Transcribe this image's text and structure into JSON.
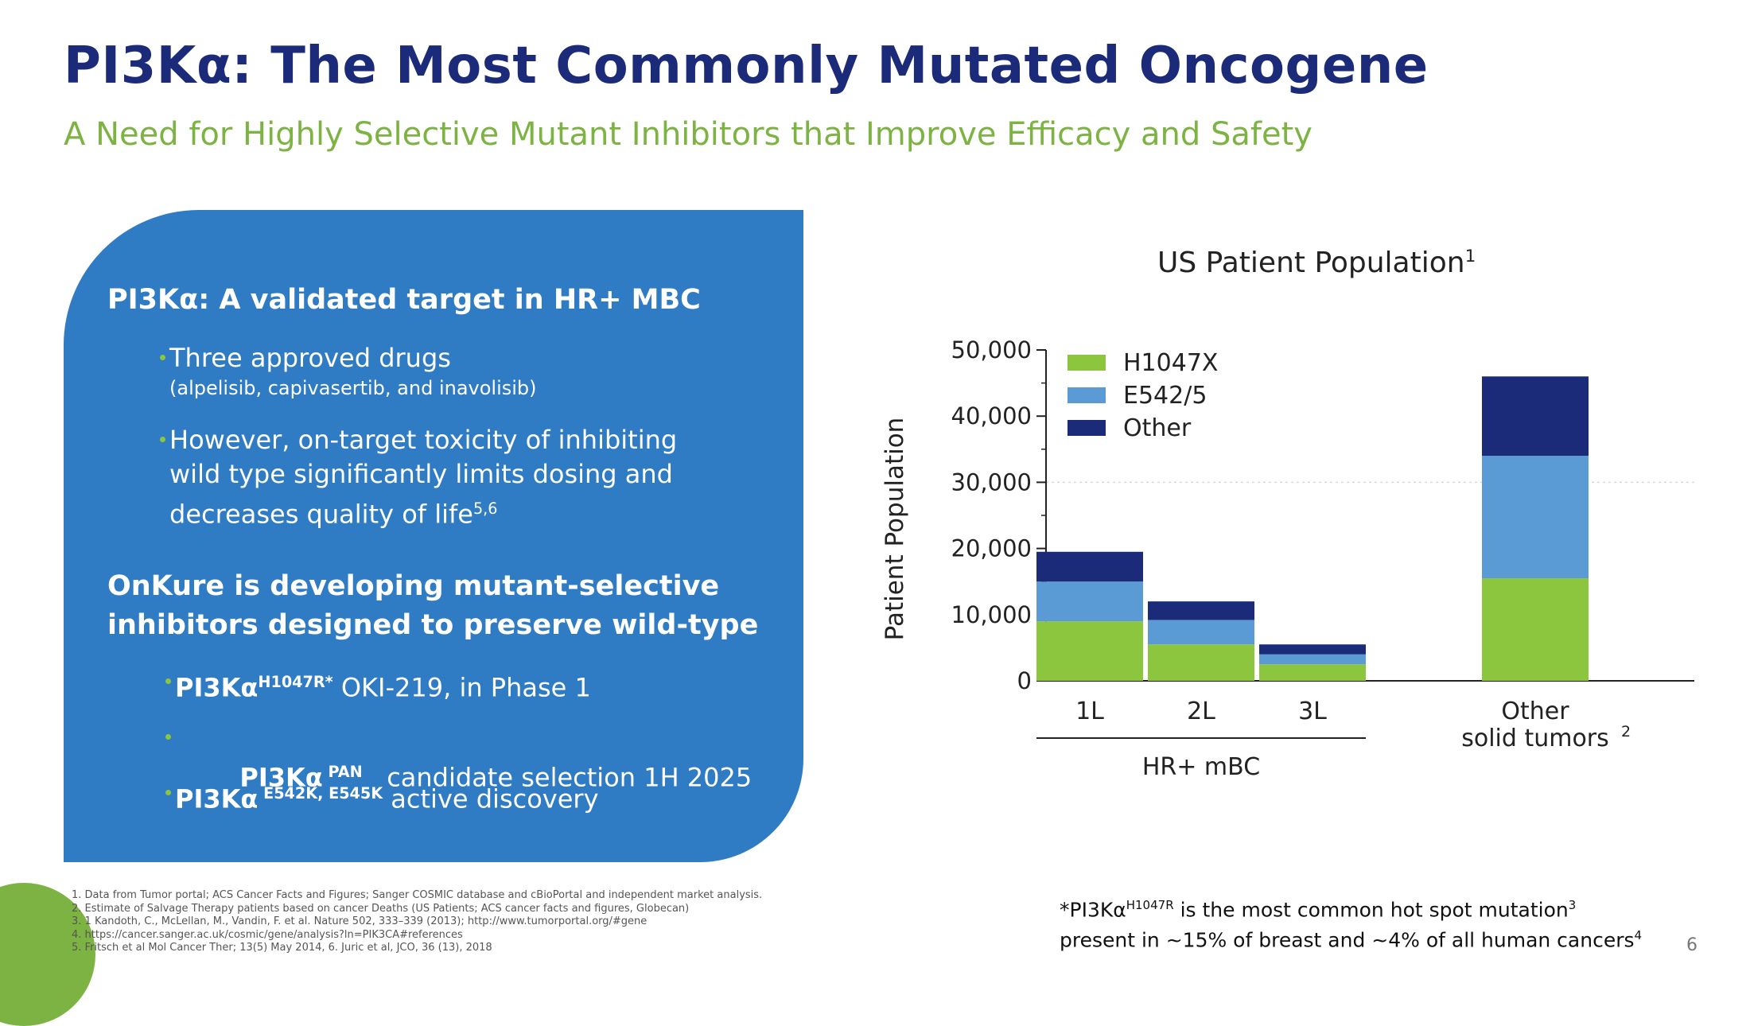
{
  "header": {
    "title": "PI3Kα: The Most Commonly Mutated Oncogene",
    "subtitle": "A Need for Highly Selective Mutant Inhibitors that Improve Efficacy and Safety"
  },
  "panel": {
    "heading1": "PI3Kα: A validated target in HR+ MBC",
    "bullet1_line1": "Three approved drugs",
    "bullet1_line2": "(alpelisib, capivasertib, and inavolisib)",
    "bullet2_line1": "However, on-target toxicity of inhibiting",
    "bullet2_line2": "wild type significantly limits dosing and",
    "bullet2_line3": "decreases quality of life",
    "bullet2_sup": "5,6",
    "heading2_line1": "OnKure is developing mutant-selective",
    "heading2_line2": "inhibitors designed to preserve wild-type",
    "items": [
      {
        "name": "PI3Kα",
        "sup": "H1047R*",
        "text": " OKI-219, in Phase 1"
      },
      {
        "name": "PI3Kα",
        "sup": " PAN",
        "text": "   candidate selection 1H 2025"
      },
      {
        "name": "PI3Kα",
        "sup": " E542K, E545K",
        "text": " active discovery"
      }
    ],
    "colors": {
      "panel": "#2f7bc4",
      "bullet": "#8cc63f"
    }
  },
  "chart_data": {
    "type": "bar",
    "stacked": true,
    "title": "US Patient Population",
    "title_sup": "1",
    "ylabel": "Patient Population",
    "ylim": [
      0,
      50000
    ],
    "yticks": [
      "0",
      "10,000",
      "20,000",
      "30,000",
      "40,000",
      "50,000"
    ],
    "categories": [
      "1L",
      "2L",
      "3L",
      "Other solid tumors"
    ],
    "category_labels": [
      {
        "line1": "1L",
        "line2": ""
      },
      {
        "line1": "2L",
        "line2": ""
      },
      {
        "line1": "3L",
        "line2": ""
      },
      {
        "line1": "Other",
        "line2": "solid tumors",
        "sup": "2"
      }
    ],
    "group_label": "HR+ mBC",
    "legend_position": "top-left",
    "series": [
      {
        "name": "H1047X",
        "color": "#8cc63f",
        "values": [
          9000,
          5500,
          2500,
          15500
        ]
      },
      {
        "name": "E542/5",
        "color": "#5b9bd5",
        "values": [
          6000,
          3700,
          1500,
          18500
        ]
      },
      {
        "name": "Other",
        "color": "#1b2b7a",
        "values": [
          4500,
          2800,
          1500,
          12000
        ]
      }
    ]
  },
  "footnotes": [
    "1. Data from Tumor portal; ACS Cancer Facts and Figures; Sanger COSMIC database and cBioPortal and independent market analysis.",
    "2. Estimate of Salvage Therapy patients based on cancer Deaths (US Patients; ACS cancer facts and figures, Globecan)",
    "3. 1 Kandoth, C., McLellan, M., Vandin, F. et al. Nature 502, 333–339 (2013); http://www.tumorportal.org/#gene",
    "4. https://cancer.sanger.ac.uk/cosmic/gene/analysis?ln=PIK3CA#references",
    "5. Fritsch et al Mol Cancer Ther; 13(5) May 2014,    6. Juric et al, JCO, 36 (13), 2018"
  ],
  "note": {
    "prefix": "*PI3Kα",
    "sup1": "H1047R",
    "line1_rest": " is the most common hot spot mutation",
    "sup2": "3",
    "line2": "present in ~15% of breast and ~4% of all human cancers",
    "sup3": "4"
  },
  "page_number": "6"
}
